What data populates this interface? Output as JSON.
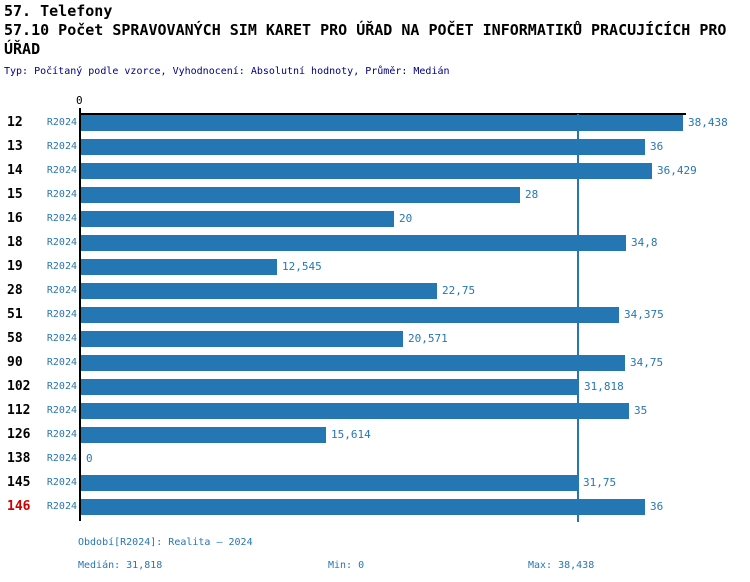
{
  "header": {
    "section_title": "57. Telefony",
    "indicator_title": "57.10 Počet SPRAVOVANÝCH SIM KARET PRO ÚŘAD NA POČET INFORMATIKŮ PRACUJÍCÍCH PRO ÚŘAD",
    "meta_line": "Typ: Počítaný podle vzorce, Vyhodnocení: Absolutní hodnoty, Průměr: Medián"
  },
  "chart_data": {
    "type": "bar",
    "orientation": "horizontal",
    "zero_label": "0",
    "axis_max": 38.438,
    "xlim": [
      0,
      38.438
    ],
    "median": 31.818,
    "period_label": "R2024",
    "categories": [
      "12",
      "13",
      "14",
      "15",
      "16",
      "18",
      "19",
      "28",
      "51",
      "58",
      "90",
      "102",
      "112",
      "126",
      "138",
      "145",
      "146"
    ],
    "values": [
      38.438,
      36,
      36.429,
      28,
      20,
      34.8,
      12.545,
      22.75,
      34.375,
      20.571,
      34.75,
      31.818,
      35,
      15.614,
      0,
      31.75,
      36
    ],
    "value_labels": [
      "38,438",
      "36",
      "36,429",
      "28",
      "20",
      "34,8",
      "12,545",
      "22,75",
      "34,375",
      "20,571",
      "34,75",
      "31,818",
      "35",
      "15,614",
      "0",
      "31,75",
      "36"
    ],
    "highlighted_category": "146",
    "grid": "median-line-only",
    "legend_position": "none"
  },
  "footer": {
    "period_line": "Období[R2024]: Realita – 2024",
    "median_label": "Medián: 31,818",
    "min_label": "Min: 0",
    "max_label": "Max: 38,438"
  },
  "colors": {
    "bar": "#2577b4",
    "text_blue": "#2577b4",
    "meta_text": "#000080",
    "highlight_red": "#cc0000",
    "axis_black": "#000000"
  }
}
